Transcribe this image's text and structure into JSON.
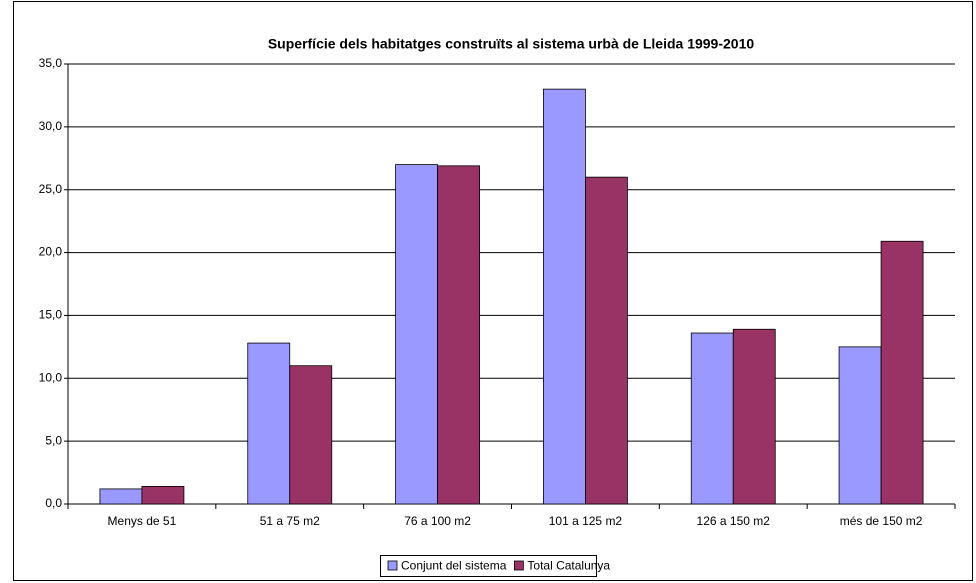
{
  "chart_data": {
    "type": "bar",
    "title": "Superfície dels habitatges construïts al sistema urbà de Lleida 1999-2010",
    "categories": [
      "Menys de 51",
      "51 a 75 m2",
      "76 a 100 m2",
      "101 a 125 m2",
      "126 a 150 m2",
      "més de 150 m2"
    ],
    "series": [
      {
        "name": "Conjunt del sistema",
        "color": "#9999ff",
        "values": [
          1.2,
          12.8,
          27.0,
          33.0,
          13.6,
          12.5
        ]
      },
      {
        "name": "Total Catalunya",
        "color": "#993366",
        "values": [
          1.4,
          11.0,
          26.9,
          26.0,
          13.9,
          20.9
        ]
      }
    ],
    "ylim": [
      0,
      35
    ],
    "yticks": [
      {
        "value": 0,
        "label": "0,0"
      },
      {
        "value": 5,
        "label": "5,0"
      },
      {
        "value": 10,
        "label": "10,0"
      },
      {
        "value": 15,
        "label": "15,0"
      },
      {
        "value": 20,
        "label": "20,0"
      },
      {
        "value": 25,
        "label": "25,0"
      },
      {
        "value": 30,
        "label": "30,0"
      },
      {
        "value": 35,
        "label": "35,0"
      }
    ],
    "grid": true,
    "legend": "bottom"
  }
}
